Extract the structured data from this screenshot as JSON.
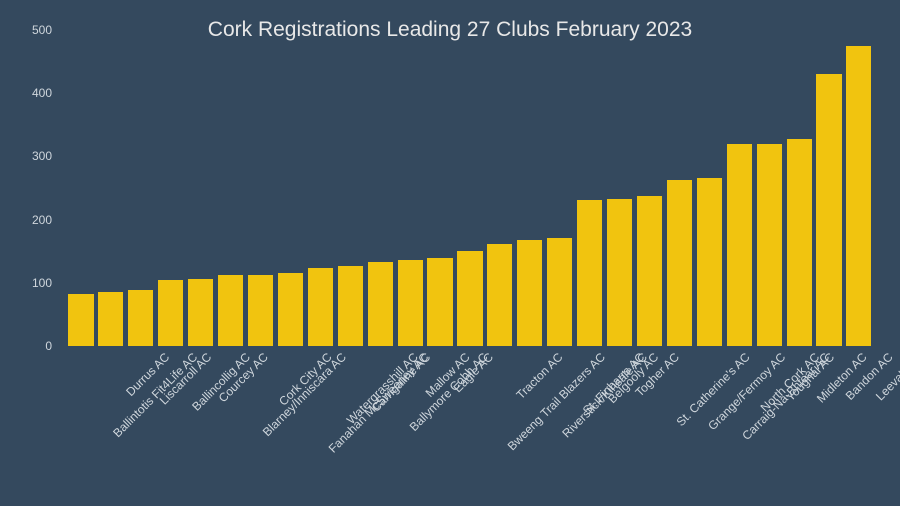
{
  "chart": {
    "type": "bar",
    "title": "Cork Registrations Leading 27 Clubs February 2023",
    "title_fontsize": 21,
    "title_color": "#e8e8e8",
    "background_color": "#34495e",
    "plot_background_color": "#34495e",
    "bar_color": "#f1c40f",
    "bar_width": 0.84,
    "axis_text_color": "#cfd6dc",
    "axis_fontsize": 12,
    "xlabel_fontsize": 12,
    "ylim": [
      0,
      500
    ],
    "ytick_step": 100,
    "yticks": [
      0,
      100,
      200,
      300,
      400,
      500
    ],
    "categories": [
      "Ballintotis Fit4Life AC",
      "Durrus AC",
      "Liscarroll AC",
      "Ballincollig AC",
      "Courcey AC",
      "Blarney/Inniscara AC",
      "Cork City AC",
      "Fanahan McSweeney AC",
      "Watergrasshill AC",
      "Carrigaline AC",
      "Ballymore Cobh AC",
      "Mallow AC",
      "Eagle AC",
      "Bweeng Trail Blazers AC",
      "Tracton AC",
      "Riverstick/Kinsale AC",
      "St. Finbarrs AC",
      "Belgooly AC",
      "Togher AC",
      "St. Catherine's AC",
      "Grange/Fermoy AC",
      "Carraig-Na-Bhfear AC",
      "North Cork AC",
      "Youghal AC",
      "Midleton AC",
      "Bandon AC",
      "Leevale AC"
    ],
    "values": [
      83,
      86,
      89,
      105,
      106,
      112,
      113,
      116,
      123,
      126,
      133,
      136,
      139,
      150,
      161,
      167,
      171,
      231,
      233,
      237,
      262,
      266,
      319,
      320,
      328,
      430,
      474
    ]
  }
}
